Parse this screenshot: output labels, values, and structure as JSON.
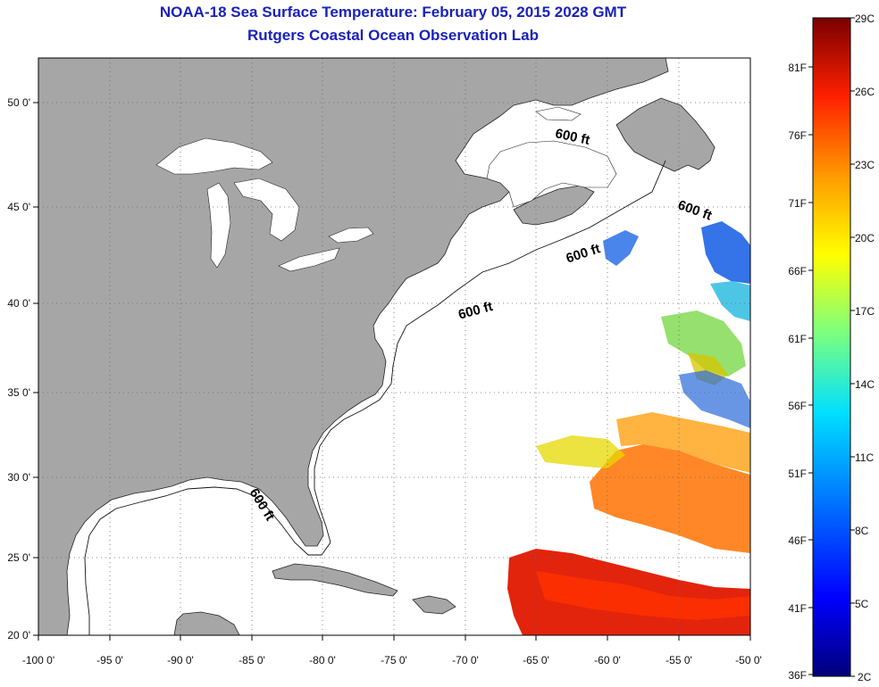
{
  "title": "NOAA-18 Sea Surface Temperature:  February 05, 2015 2028 GMT",
  "subtitle": "Rutgers Coastal Ocean Observation Lab",
  "x_ticks": [
    "-100 0'",
    "-95 0'",
    "-90 0'",
    "-85 0'",
    "-80 0'",
    "-75 0'",
    "-70 0'",
    "-65 0'",
    "-60 0'",
    "-55 0'",
    "-50 0'"
  ],
  "y_ticks": [
    "50 0'",
    "45 0'",
    "40 0'",
    "35 0'",
    "30 0'",
    "25 0'",
    "20 0'"
  ],
  "contour_labels": [
    "600 ft",
    "600 ft",
    "600 ft",
    "600 ft",
    "600 ft"
  ],
  "colorbar": {
    "celsius": [
      "29C",
      "26C",
      "23C",
      "20C",
      "17C",
      "14C",
      "11C",
      "8C",
      "5C",
      "2C"
    ],
    "fahrenheit": [
      "81F",
      "76F",
      "71F",
      "66F",
      "61F",
      "56F",
      "51F",
      "46F",
      "41F",
      "36F"
    ],
    "colors": [
      "#7a0000",
      "#d40000",
      "#ff4a00",
      "#ff9a00",
      "#ffe600",
      "#a6f23a",
      "#22e6c8",
      "#00aaff",
      "#0050ff",
      "#00008f"
    ]
  },
  "colors": {
    "land": "#a6a6a6",
    "ocean": "#ffffff",
    "title": "#1a23b5",
    "grid": "#555555"
  }
}
